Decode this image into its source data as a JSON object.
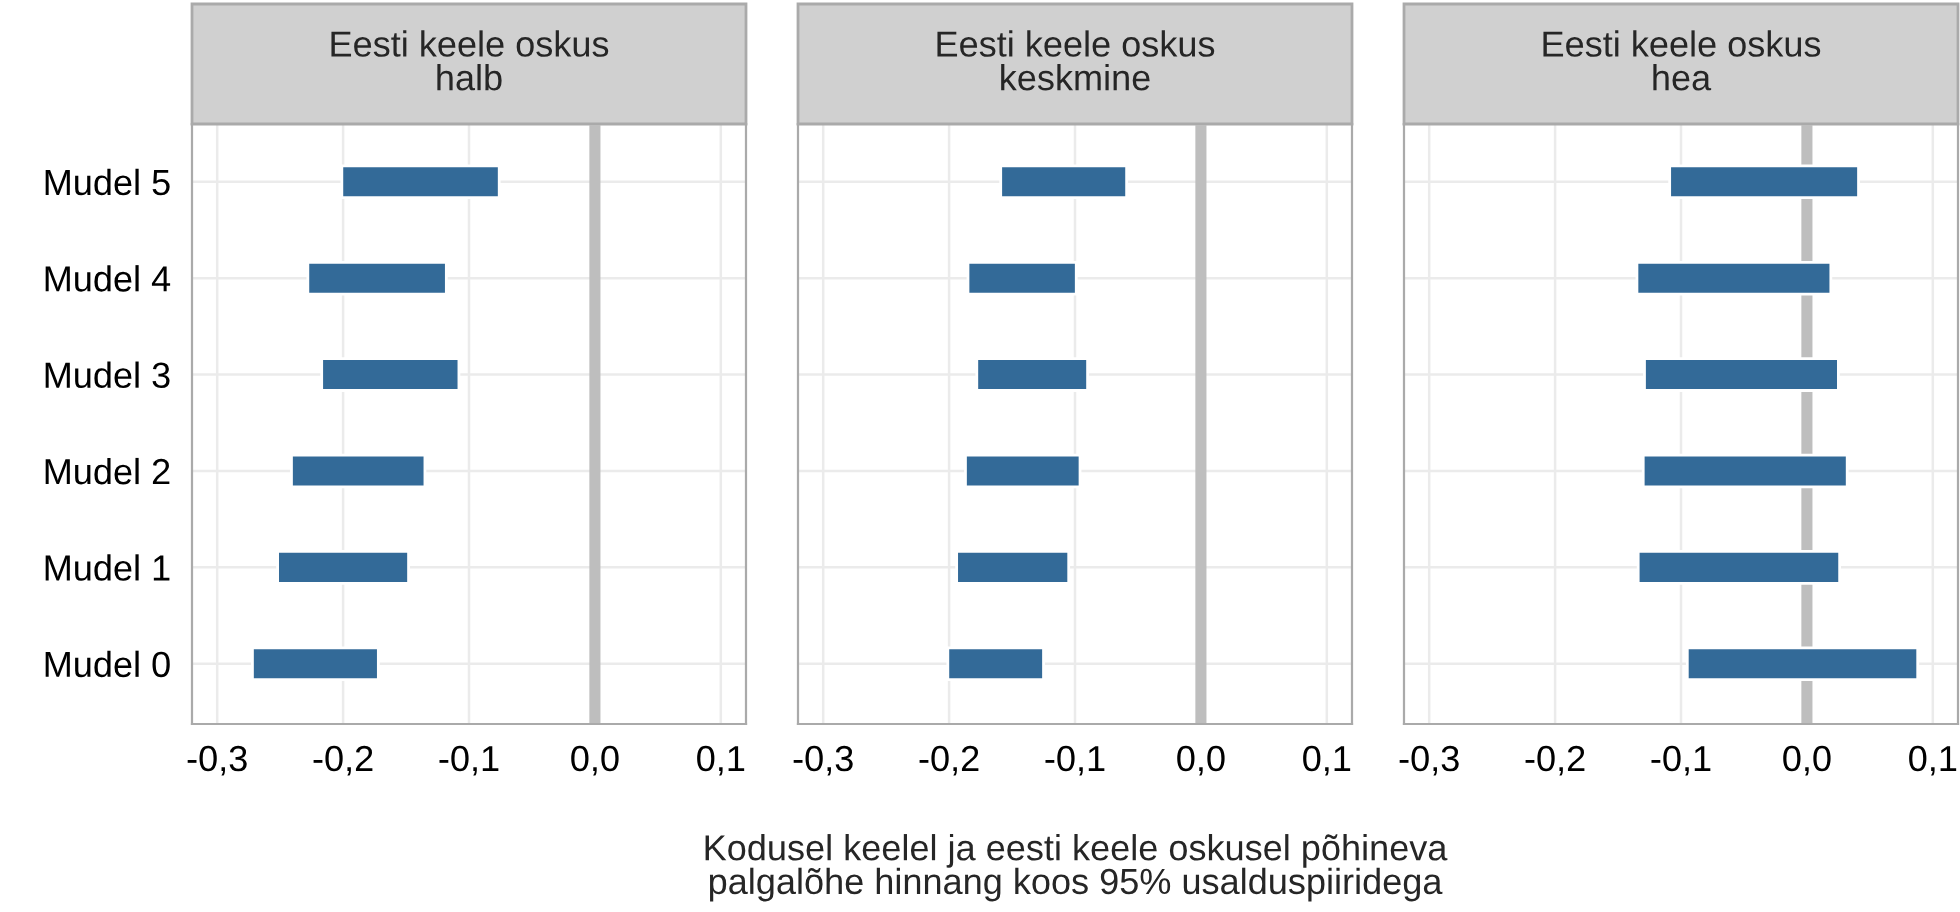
{
  "chart_data": [
    {
      "type": "bar",
      "orientation": "horizontal",
      "title": "Eesti keele oskus\nhalb",
      "categories": [
        "Mudel 5",
        "Mudel 4",
        "Mudel 3",
        "Mudel 2",
        "Mudel 1",
        "Mudel 0"
      ],
      "base": [
        -0.201,
        -0.228,
        -0.217,
        -0.241,
        -0.252,
        -0.272
      ],
      "values": [
        0.125,
        0.11,
        0.109,
        0.106,
        0.104,
        0.1
      ],
      "color": "#336a98",
      "xlim": [
        -0.32,
        0.12
      ],
      "xticks": [
        {
          "value": -0.3,
          "label": "-0,3"
        },
        {
          "value": -0.2,
          "label": "-0,2"
        },
        {
          "value": -0.1,
          "label": "-0,1"
        },
        {
          "value": 0,
          "label": "0,0"
        },
        {
          "value": 0.1,
          "label": "0,1"
        }
      ],
      "ref_lines": [
        {
          "axis": "x",
          "value": 0,
          "color": "#bebebe"
        }
      ],
      "grid": true
    },
    {
      "type": "bar",
      "orientation": "horizontal",
      "title": "Eesti keele oskus\nkeskmine",
      "xlabel": "Kodusel keelel ja eesti keele oskusel põhineva\npalgalõhe hinnang koos 95% usalduspiiridega",
      "categories": [
        null,
        null,
        null,
        null,
        null,
        null
      ],
      "base": [
        -0.159,
        -0.185,
        -0.178,
        -0.187,
        -0.194,
        -0.201
      ],
      "values": [
        0.1,
        0.086,
        0.088,
        0.091,
        0.089,
        0.076
      ],
      "color": "#336a98",
      "xlim": [
        -0.32,
        0.12
      ],
      "xticks": [
        {
          "value": -0.3,
          "label": "-0,3"
        },
        {
          "value": -0.2,
          "label": "-0,2"
        },
        {
          "value": -0.1,
          "label": "-0,1"
        },
        {
          "value": 0,
          "label": "0,0"
        },
        {
          "value": 0.1,
          "label": "0,1"
        }
      ],
      "ref_lines": [
        {
          "axis": "x",
          "value": 0,
          "color": "#bebebe"
        }
      ],
      "grid": true,
      "tick_labels": "x"
    },
    {
      "type": "bar",
      "orientation": "horizontal",
      "title": "Eesti keele oskus\nhea",
      "categories": [
        null,
        null,
        null,
        null,
        null,
        null
      ],
      "base": [
        -0.109,
        -0.135,
        -0.129,
        -0.13,
        -0.134,
        -0.095
      ],
      "values": [
        0.15,
        0.154,
        0.154,
        0.162,
        0.16,
        0.183
      ],
      "color": "#336a98",
      "xlim": [
        -0.32,
        0.12
      ],
      "xticks": [
        {
          "value": -0.3,
          "label": "-0,3"
        },
        {
          "value": -0.2,
          "label": "-0,2"
        },
        {
          "value": -0.1,
          "label": "-0,1"
        },
        {
          "value": 0,
          "label": "0,0"
        },
        {
          "value": 0.1,
          "label": "0,1"
        }
      ],
      "ref_lines": [
        {
          "axis": "x",
          "value": 0,
          "color": "#bebebe"
        }
      ],
      "grid": true,
      "tick_labels": "x"
    }
  ]
}
